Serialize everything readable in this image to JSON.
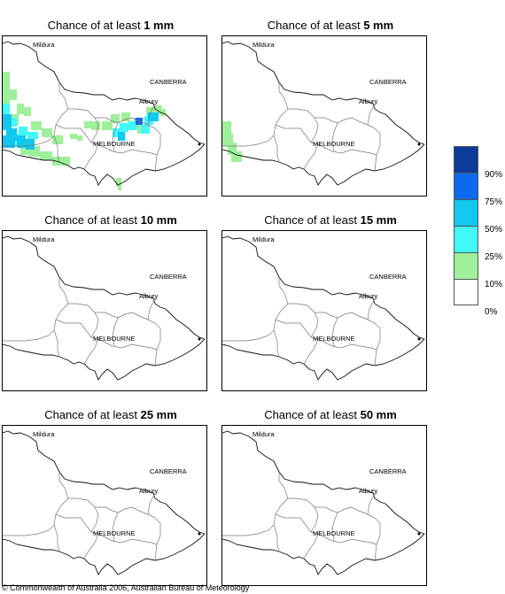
{
  "title_prefix": "Chance of at least",
  "panels": [
    {
      "amount": "1 mm"
    },
    {
      "amount": "5 mm"
    },
    {
      "amount": "10 mm"
    },
    {
      "amount": "15 mm"
    },
    {
      "amount": "25 mm"
    },
    {
      "amount": "50 mm"
    }
  ],
  "map_labels": {
    "mildura": "Mildura",
    "canberra": "CANBERRA",
    "albury": "Albury",
    "melbourne": "MELBOURNE"
  },
  "legend": {
    "labels": [
      "90%",
      "75%",
      "50%",
      "25%",
      "10%",
      "0%"
    ],
    "colors": [
      "#0a3a9a",
      "#0a6af0",
      "#10c8f0",
      "#40fafa",
      "#9ef09a",
      "#ffffff"
    ]
  },
  "copyright": "© Commonwealth of Australia 2006, Australian Bureau of Meteorology"
}
